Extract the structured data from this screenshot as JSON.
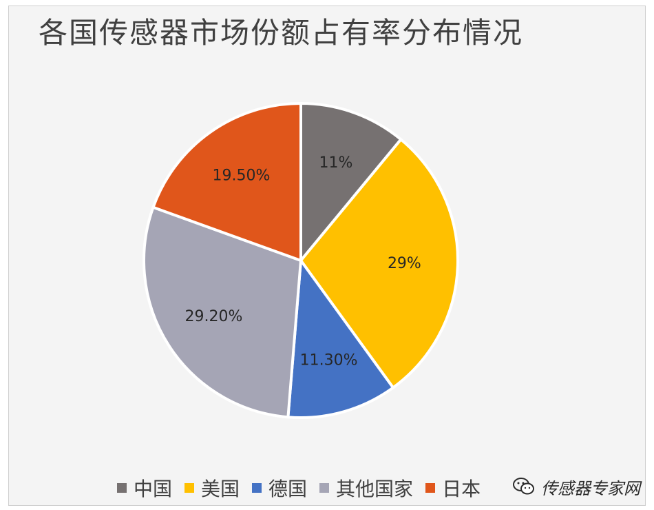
{
  "chart_data": {
    "type": "pie",
    "title": "各国传感器市场份额占有率分布情况",
    "categories": [
      "中国",
      "美国",
      "德国",
      "其他国家",
      "日本"
    ],
    "values": [
      11,
      29,
      11.3,
      29.2,
      19.5
    ],
    "labels": [
      "11%",
      "29%",
      "11.30%",
      "29.20%",
      "19.50%"
    ],
    "colors": [
      "#767171",
      "#ffc000",
      "#4472c4",
      "#a5a5b5",
      "#e0561b"
    ],
    "start_angle_deg": 0,
    "direction": "clockwise",
    "legend_position": "bottom"
  },
  "watermark": {
    "icon": "wechat-icon",
    "text": "传感器专家网"
  }
}
